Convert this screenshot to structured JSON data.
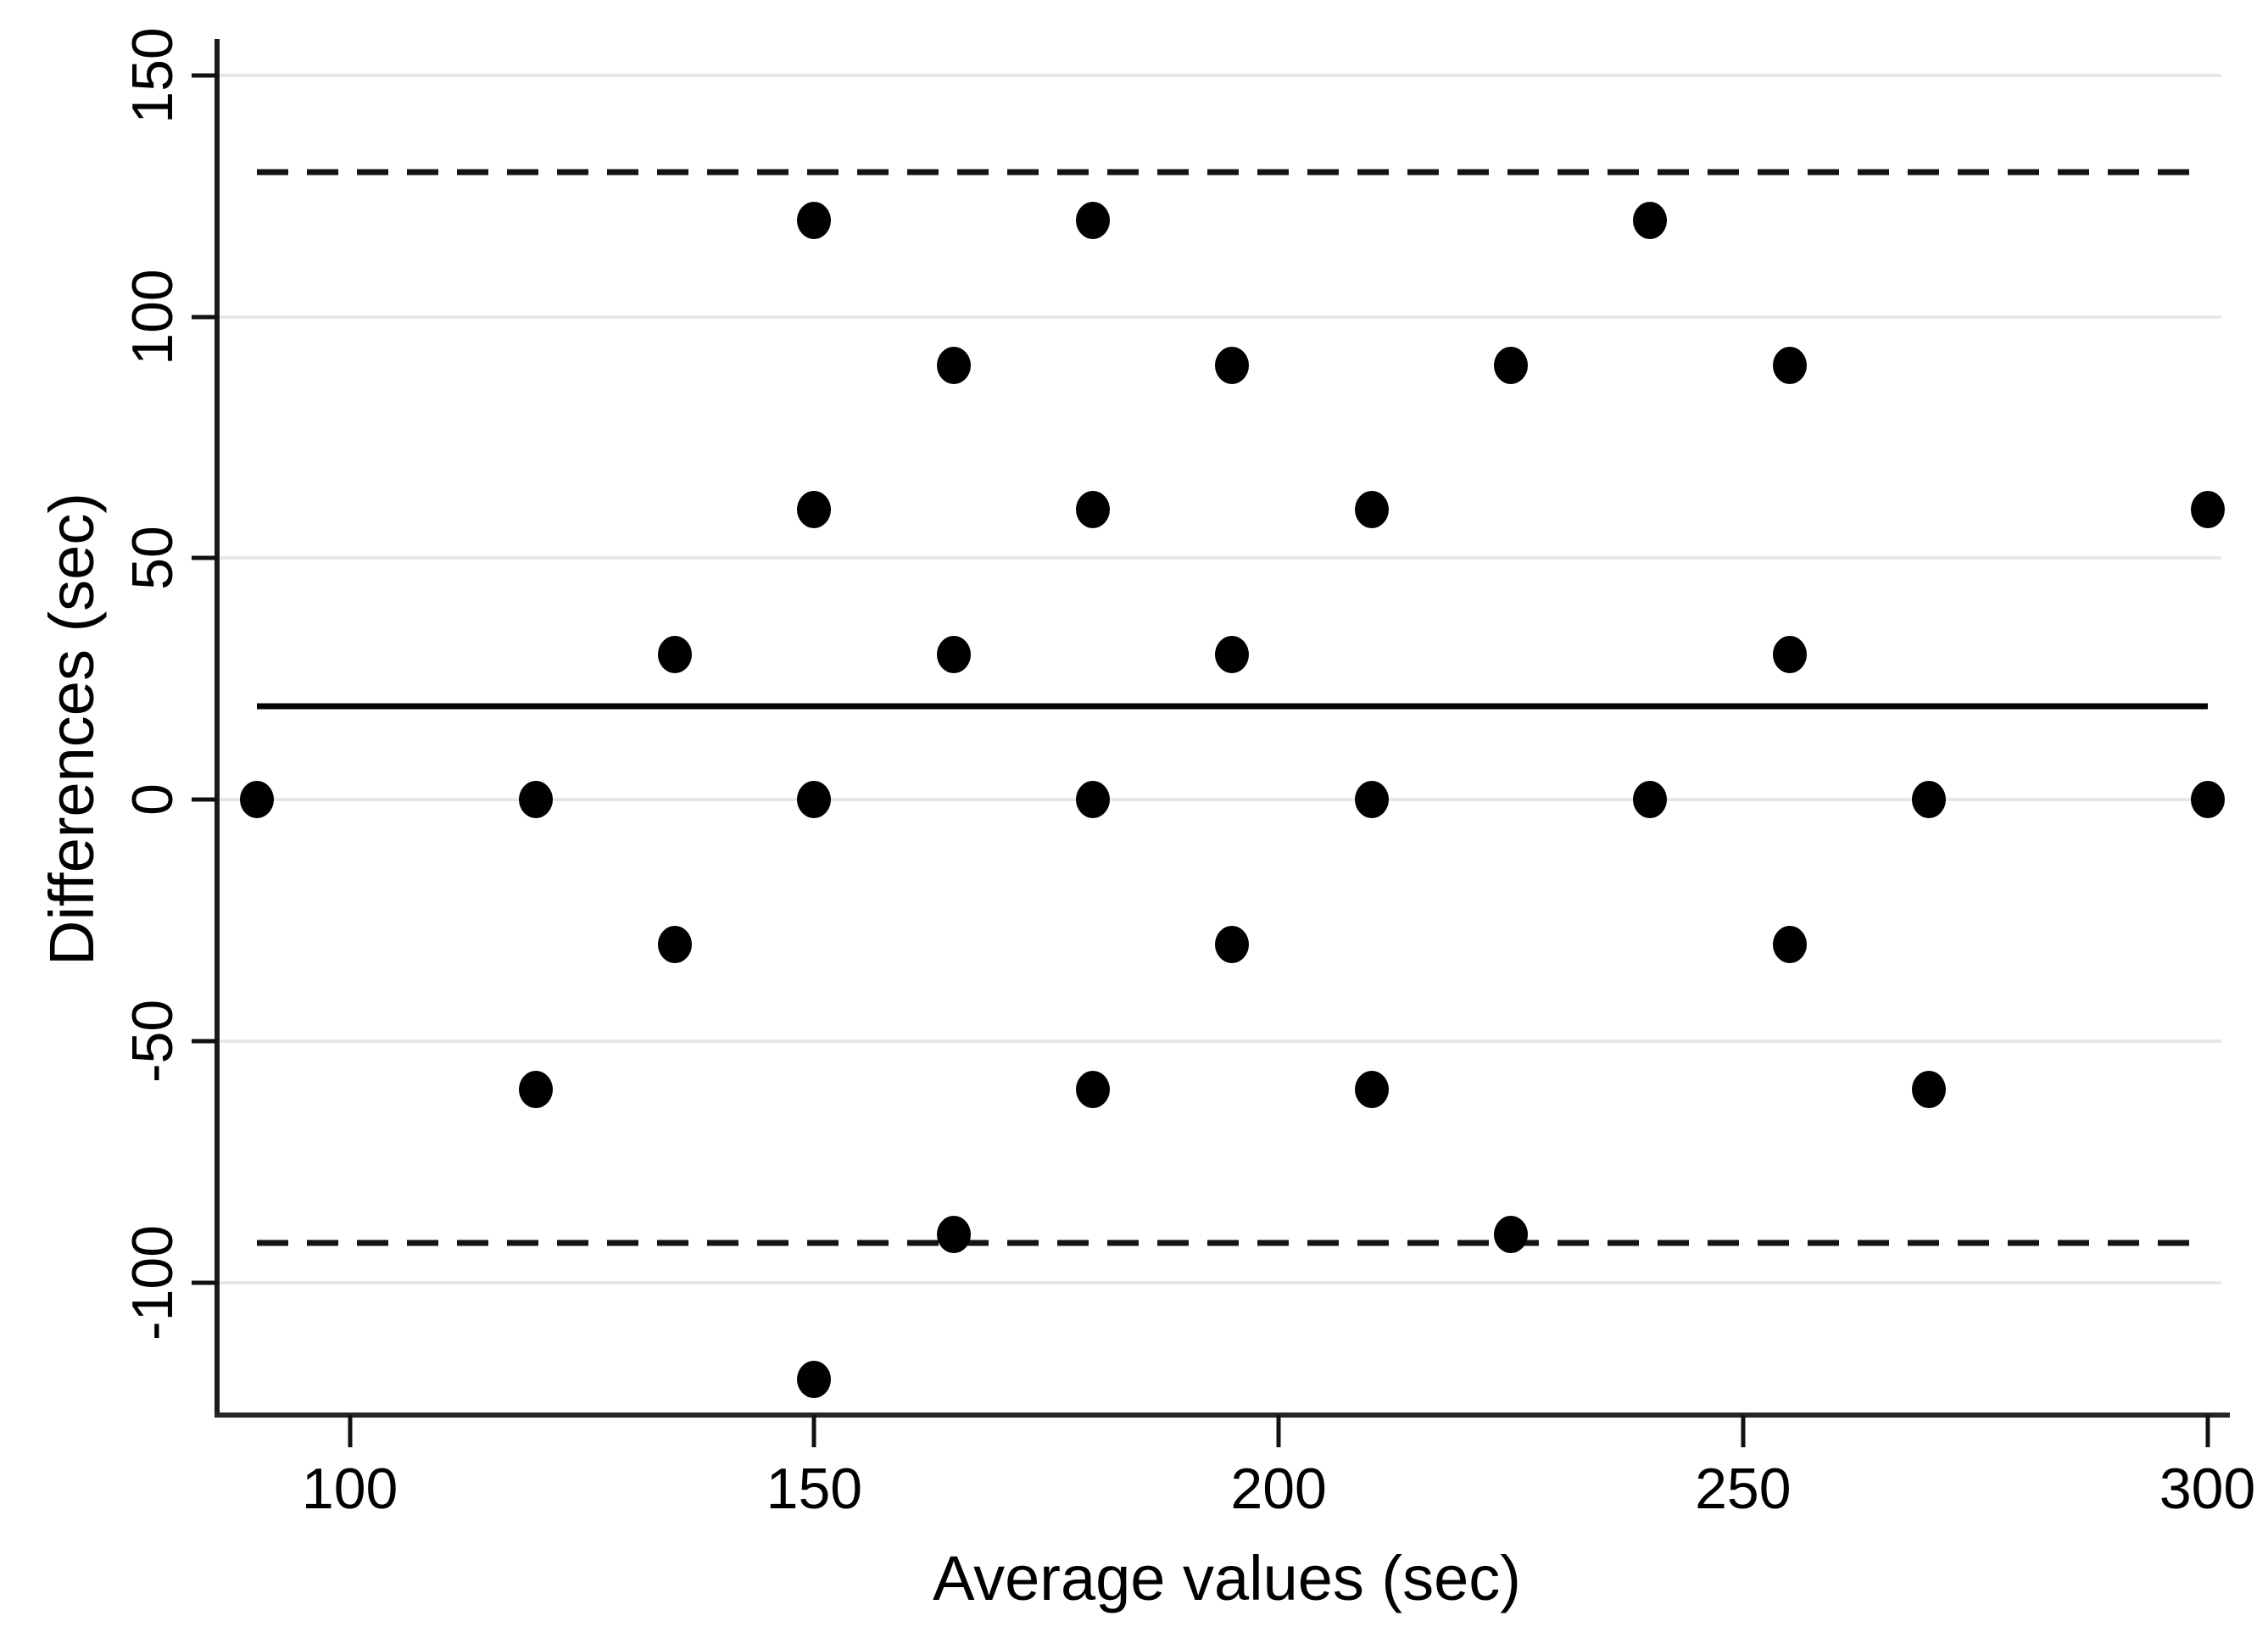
{
  "figure": {
    "background": "#ffffff"
  },
  "chart_data": {
    "type": "scatter",
    "title": "",
    "xlabel": "Average values (sec)",
    "ylabel": "Differences (sec)",
    "xlim": [
      85.7,
      301.5
    ],
    "ylim": [
      -127.4,
      157.5
    ],
    "grid": "horizontal-only",
    "legend": "none",
    "x_ticks": [
      100,
      150,
      200,
      250,
      300
    ],
    "x_tick_labels": [
      "100",
      "150",
      "200",
      "250",
      "300"
    ],
    "y_ticks": [
      150,
      100,
      50,
      0,
      -50,
      -100
    ],
    "y_tick_labels": [
      "150",
      "100",
      "50",
      "0",
      "-50",
      "-100"
    ],
    "points": [
      [
        150,
        120
      ],
      [
        180,
        120
      ],
      [
        240,
        120
      ],
      [
        165,
        90
      ],
      [
        195,
        90
      ],
      [
        225,
        90
      ],
      [
        255,
        90
      ],
      [
        150,
        60
      ],
      [
        180,
        60
      ],
      [
        210,
        60
      ],
      [
        300,
        60
      ],
      [
        135,
        30
      ],
      [
        165,
        30
      ],
      [
        195,
        30
      ],
      [
        255,
        30
      ],
      [
        90,
        0
      ],
      [
        120,
        0
      ],
      [
        150,
        0
      ],
      [
        180,
        0
      ],
      [
        210,
        0
      ],
      [
        240,
        0
      ],
      [
        270,
        0
      ],
      [
        300,
        0
      ],
      [
        135,
        -30
      ],
      [
        195,
        -30
      ],
      [
        255,
        -30
      ],
      [
        120,
        -60
      ],
      [
        180,
        -60
      ],
      [
        210,
        -60
      ],
      [
        270,
        -60
      ],
      [
        165,
        -90
      ],
      [
        225,
        -90
      ],
      [
        150,
        -120
      ]
    ],
    "reference_lines": [
      {
        "name": "mean-difference-line",
        "y": 19.3,
        "style": "solid"
      },
      {
        "name": "upper-limit-of-agreement-line",
        "y": 130.0,
        "style": "dashed"
      },
      {
        "name": "lower-limit-of-agreement-line",
        "y": -91.8,
        "style": "dashed"
      }
    ],
    "reference_line_x_range": [
      90,
      300
    ],
    "marker": {
      "shape": "circle",
      "color": "#000000"
    },
    "colors": {
      "grid": "#e7e7e7",
      "axis": "#1a1a1a",
      "marker": "#000000",
      "reference_lines": "#000000"
    }
  }
}
